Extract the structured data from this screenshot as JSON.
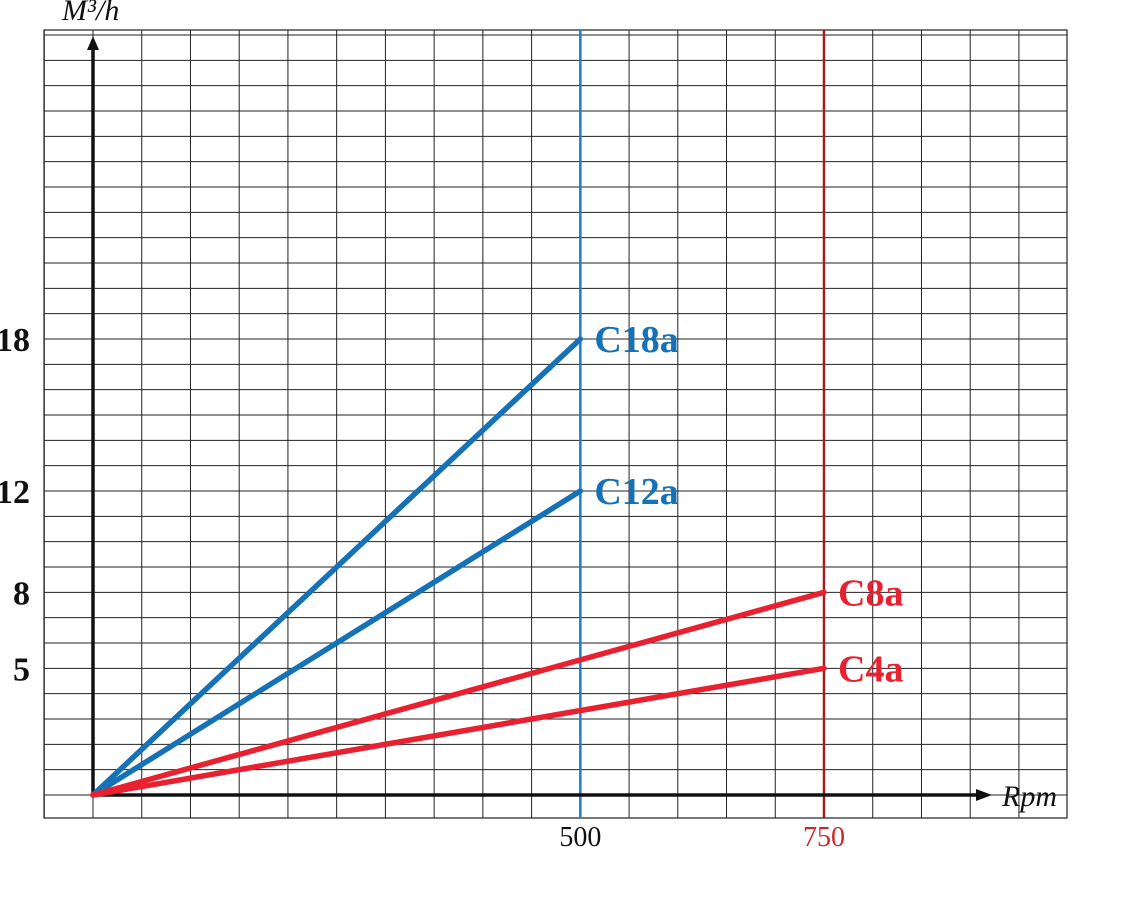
{
  "chart_data": {
    "type": "line",
    "xlabel": "Rpm",
    "ylabel": "M³/h",
    "grid": true,
    "xlim": [
      0,
      1000
    ],
    "ylim": [
      -1,
      30
    ],
    "x_ticks": [
      {
        "label": "500",
        "value": 500,
        "color": "#111111"
      },
      {
        "label": "750",
        "value": 750,
        "color": "#cc2a2a"
      }
    ],
    "y_ticks": [
      {
        "label": "18",
        "value": 18
      },
      {
        "label": "12",
        "value": 12
      },
      {
        "label": "8",
        "value": 8
      },
      {
        "label": "5",
        "value": 5
      }
    ],
    "reference_lines": [
      {
        "x": 500,
        "color": "#1a7fd4"
      },
      {
        "x": 750,
        "color": "#a31d1d"
      }
    ],
    "series": [
      {
        "name": "C18a",
        "color": "#1572b6",
        "points": [
          [
            0,
            0
          ],
          [
            500,
            18
          ]
        ]
      },
      {
        "name": "C12a",
        "color": "#1572b6",
        "points": [
          [
            0,
            0
          ],
          [
            500,
            12
          ]
        ]
      },
      {
        "name": "C8a",
        "color": "#e8202f",
        "points": [
          [
            0,
            0
          ],
          [
            750,
            8
          ]
        ]
      },
      {
        "name": "C4a",
        "color": "#e8202f",
        "points": [
          [
            0,
            0
          ],
          [
            750,
            5
          ]
        ]
      }
    ]
  }
}
